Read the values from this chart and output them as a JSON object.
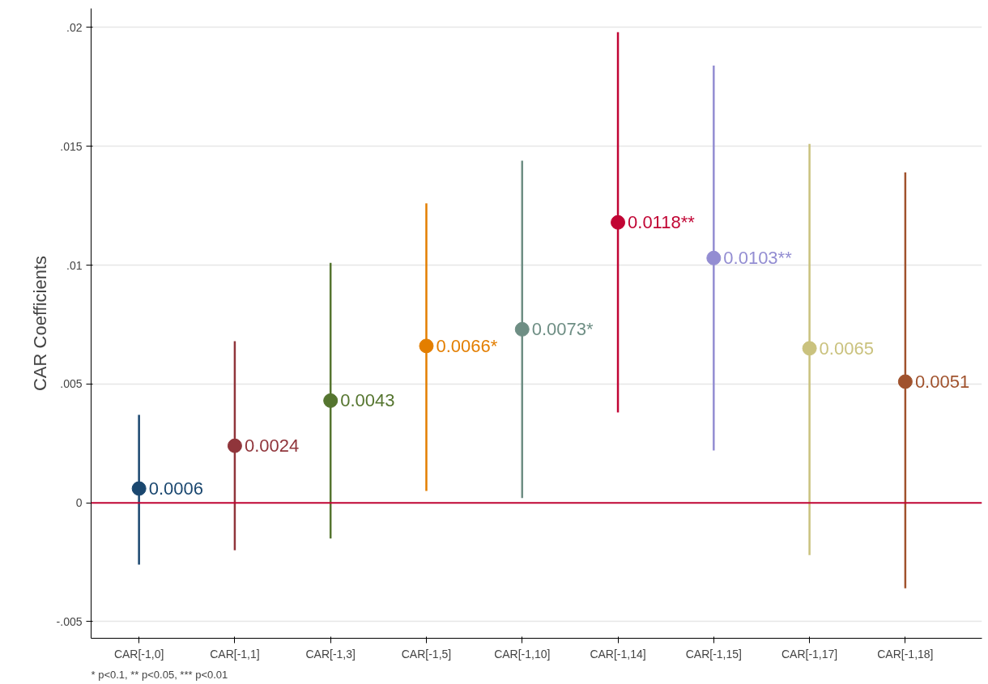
{
  "chart_data": {
    "type": "scatter",
    "ylabel": "CAR Coefficients",
    "categories": [
      "CAR[-1,0]",
      "CAR[-1,1]",
      "CAR[-1,3]",
      "CAR[-1,5]",
      "CAR[-1,10]",
      "CAR[-1,14]",
      "CAR[-1,15]",
      "CAR[-1,17]",
      "CAR[-1,18]"
    ],
    "values": [
      0.0006,
      0.0024,
      0.0043,
      0.0066,
      0.0073,
      0.0118,
      0.0103,
      0.0065,
      0.0051
    ],
    "value_labels": [
      "0.0006",
      "0.0024",
      "0.0043",
      "0.0066*",
      "0.0073*",
      "0.0118**",
      "0.0103**",
      "0.0065",
      "0.0051"
    ],
    "errors": [
      [
        -0.0026,
        0.0037
      ],
      [
        -0.002,
        0.0068
      ],
      [
        -0.0015,
        0.0101
      ],
      [
        0.0005,
        0.0126
      ],
      [
        0.0002,
        0.0144
      ],
      [
        0.0038,
        0.0198
      ],
      [
        0.0022,
        0.0184
      ],
      [
        -0.0022,
        0.0151
      ],
      [
        -0.0036,
        0.0139
      ]
    ],
    "colors": [
      "#1a476f",
      "#90353b",
      "#55752f",
      "#e37e00",
      "#6e8e84",
      "#c10534",
      "#938dd2",
      "#cac27e",
      "#a0522d"
    ],
    "marker": "circle",
    "ylim": [
      -0.0057,
      0.0208
    ],
    "yticks": [
      {
        "value": -0.005,
        "label": "-.005"
      },
      {
        "value": 0,
        "label": "0"
      },
      {
        "value": 0.005,
        "label": ".005"
      },
      {
        "value": 0.01,
        "label": ".01"
      },
      {
        "value": 0.015,
        "label": ".015"
      },
      {
        "value": 0.02,
        "label": ".02"
      }
    ],
    "grid": "y",
    "ref_lines": [
      {
        "axis": "y",
        "value": 0,
        "color": "#c10534"
      }
    ],
    "annotations": [
      "* p<0.1, ** p<0.05, *** p<0.01"
    ]
  }
}
